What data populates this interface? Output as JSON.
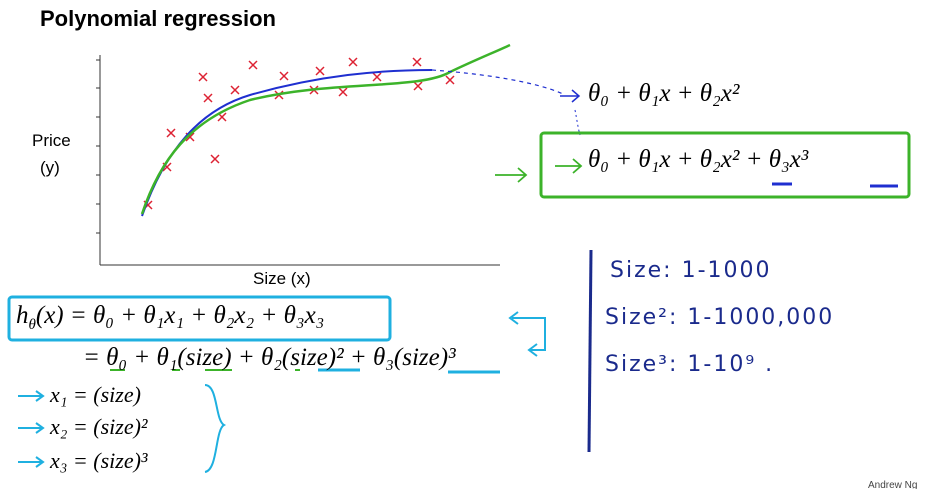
{
  "title": "Polynomial regression",
  "plot": {
    "y_label": [
      "Price",
      "(y)"
    ],
    "x_label": "Size (x)",
    "fits": [
      "θ₀ + θ₁x + θ₂x²",
      "θ₀ + θ₁x + θ₂x² + θ₃x³"
    ]
  },
  "hypothesis": {
    "h": "h",
    "h_sub": "θ",
    "line1": "(x) = θ₀ + θ₁x₁ + θ₂x₂ + θ₃x₃",
    "line2": "= θ₀ + θ₁(size) + θ₂(size)² + θ₃(size)³"
  },
  "features": [
    "x₁ = (size)",
    "x₂ = (size)²",
    "x₃ = (size)³"
  ],
  "notes": [
    "Size:  1-1000",
    "Size²:  1-1000,000",
    "Size³:  1-10⁹  ."
  ],
  "footer": "Andrew Ng"
}
